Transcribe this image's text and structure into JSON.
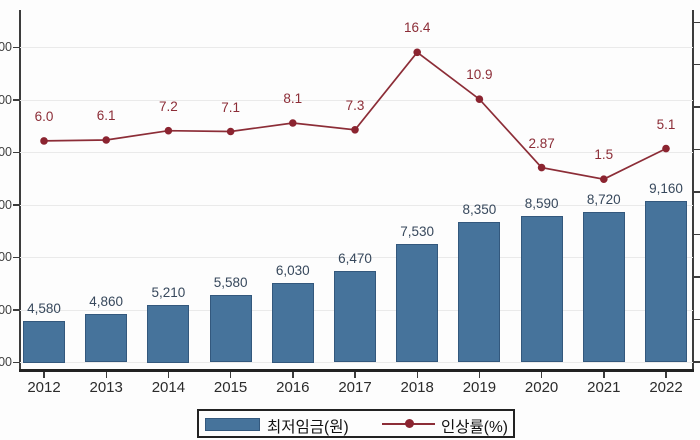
{
  "chart_data": {
    "type": "combo",
    "categories": [
      "2012",
      "2013",
      "2014",
      "2015",
      "2016",
      "2017",
      "2018",
      "2019",
      "2020",
      "2021",
      "2022"
    ],
    "series": [
      {
        "name": "최저임금(원)",
        "type": "bar",
        "values": [
          4580,
          4860,
          5210,
          5580,
          6030,
          6470,
          7530,
          8350,
          8590,
          8720,
          9160
        ],
        "labels": [
          "4,580",
          "4,860",
          "5,210",
          "5,580",
          "6,030",
          "6,470",
          "7,530",
          "8,350",
          "8,590",
          "8,720",
          "9,160"
        ],
        "color": "#46739b"
      },
      {
        "name": "인상률(%)",
        "type": "line",
        "values": [
          6.0,
          6.1,
          7.2,
          7.1,
          8.1,
          7.3,
          16.4,
          10.9,
          2.87,
          1.5,
          5.1
        ],
        "labels": [
          "6.0",
          "6.1",
          "7.2",
          "7.1",
          "8.1",
          "7.3",
          "16.4",
          "10.9",
          "2.87",
          "1.5",
          "5.1"
        ],
        "color": "#8c2d37"
      }
    ],
    "title": "",
    "xlabel": "",
    "ylabel": "",
    "grid": true,
    "legend_position": "bottom",
    "left_axis": {
      "visible_tick_label": "00",
      "tick_count": 7,
      "labels_cut_off": true,
      "range_estimate": [
        3000,
        15000
      ]
    },
    "right_axis": {
      "tick_count": 9,
      "labels_visible": false
    }
  },
  "colors": {
    "bar_fill": "#46739b",
    "bar_border": "#33587d",
    "line": "#8c2d37",
    "marker": "#8b2430",
    "bar_label_text": "#37485c",
    "line_label_text": "#8c2d37",
    "axis": "#3c3c3c",
    "gridline": "#eaeaea",
    "background": "#fdfdfd"
  }
}
